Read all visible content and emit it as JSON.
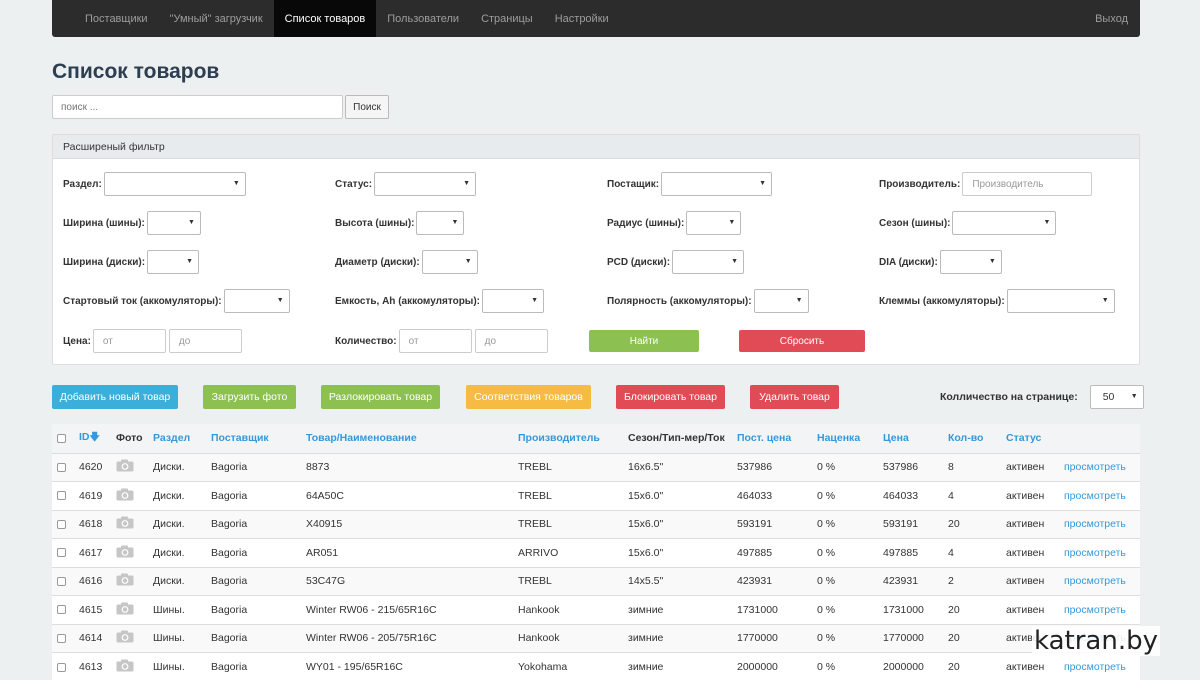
{
  "nav": {
    "items": [
      {
        "label": "Поставщики",
        "active": false
      },
      {
        "label": "\"Умный\" загрузчик",
        "active": false
      },
      {
        "label": "Список товаров",
        "active": true
      },
      {
        "label": "Пользователи",
        "active": false
      },
      {
        "label": "Страницы",
        "active": false
      },
      {
        "label": "Настройки",
        "active": false
      }
    ],
    "logout": "Выход"
  },
  "page_title": "Список товаров",
  "search": {
    "placeholder": "поиск ...",
    "button": "Поиск"
  },
  "filter": {
    "heading": "Расширеный фильтр",
    "razdel": "Раздел:",
    "status": "Статус:",
    "postavshik": "Постащик:",
    "proizvoditel": "Производитель:",
    "proizvoditel_placeholder": "Производитель",
    "shirina_shiny": "Ширина (шины):",
    "vysota_shiny": "Высота (шины):",
    "radius_shiny": "Радиус (шины):",
    "sezon_shiny": "Сезон (шины):",
    "shirina_diski": "Ширина (диски):",
    "diametr_diski": "Диаметр (диски):",
    "pcd_diski": "PCD (диски):",
    "dia_diski": "DIA (диски):",
    "start_tok": "Стартовый ток (аккомуляторы):",
    "emkost": "Емкость, Ah (аккомуляторы):",
    "polyarnost": "Полярность (аккомуляторы):",
    "klemmy": "Клеммы (аккомуляторы):",
    "cena": "Цена:",
    "kolichestvo": "Количество:",
    "from_placeholder": "от",
    "to_placeholder": "до",
    "find_button": "Найти",
    "reset_button": "Сбросить"
  },
  "actions": {
    "add": "Добавить новый товар",
    "upload_photo": "Загрузить фото",
    "unlock": "Разлокировать товар",
    "matches": "Соответствия товаров",
    "block": "Блокировать товар",
    "delete": "Удалить товар",
    "per_page_label": "Колличество на странице:",
    "per_page_value": "50"
  },
  "table": {
    "headers": {
      "id": "ID",
      "foto": "Фото",
      "razdel": "Раздел",
      "postavshik": "Поставщик",
      "tovar": "Товар/Наименование",
      "proizvoditel": "Производитель",
      "sezon": "Сезон/Тип-мер/Ток",
      "post_cena": "Пост. цена",
      "nacenka": "Наценка",
      "cena": "Цена",
      "kolvo": "Кол-во",
      "status": "Статус"
    },
    "rows": [
      {
        "id": "4620",
        "razdel": "Диски.",
        "postavshik": "Bagoria",
        "tovar": "8873",
        "proizvoditel": "TREBL",
        "sezon": "16x6.5\"",
        "post_cena": "537986",
        "nacenka": "0 %",
        "cena": "537986",
        "kolvo": "8",
        "status": "активен",
        "link": "просмотреть"
      },
      {
        "id": "4619",
        "razdel": "Диски.",
        "postavshik": "Bagoria",
        "tovar": "64A50C",
        "proizvoditel": "TREBL",
        "sezon": "15x6.0\"",
        "post_cena": "464033",
        "nacenka": "0 %",
        "cena": "464033",
        "kolvo": "4",
        "status": "активен",
        "link": "просмотреть"
      },
      {
        "id": "4618",
        "razdel": "Диски.",
        "postavshik": "Bagoria",
        "tovar": "X40915",
        "proizvoditel": "TREBL",
        "sezon": "15x6.0\"",
        "post_cena": "593191",
        "nacenka": "0 %",
        "cena": "593191",
        "kolvo": "20",
        "status": "активен",
        "link": "просмотреть"
      },
      {
        "id": "4617",
        "razdel": "Диски.",
        "postavshik": "Bagoria",
        "tovar": "AR051",
        "proizvoditel": "ARRIVO",
        "sezon": "15x6.0\"",
        "post_cena": "497885",
        "nacenka": "0 %",
        "cena": "497885",
        "kolvo": "4",
        "status": "активен",
        "link": "просмотреть"
      },
      {
        "id": "4616",
        "razdel": "Диски.",
        "postavshik": "Bagoria",
        "tovar": "53C47G",
        "proizvoditel": "TREBL",
        "sezon": "14x5.5\"",
        "post_cena": "423931",
        "nacenka": "0 %",
        "cena": "423931",
        "kolvo": "2",
        "status": "активен",
        "link": "просмотреть"
      },
      {
        "id": "4615",
        "razdel": "Шины.",
        "postavshik": "Bagoria",
        "tovar": "Winter RW06 - 215/65R16C",
        "proizvoditel": "Hankook",
        "sezon": "зимние",
        "post_cena": "1731000",
        "nacenka": "0 %",
        "cena": "1731000",
        "kolvo": "20",
        "status": "активен",
        "link": "просмотреть"
      },
      {
        "id": "4614",
        "razdel": "Шины.",
        "postavshik": "Bagoria",
        "tovar": "Winter RW06 - 205/75R16C",
        "proizvoditel": "Hankook",
        "sezon": "зимние",
        "post_cena": "1770000",
        "nacenka": "0 %",
        "cena": "1770000",
        "kolvo": "20",
        "status": "активен",
        "link": "просмотреть"
      },
      {
        "id": "4613",
        "razdel": "Шины.",
        "postavshik": "Bagoria",
        "tovar": "WY01 - 195/65R16C",
        "proizvoditel": "Yokohama",
        "sezon": "зимние",
        "post_cena": "2000000",
        "nacenka": "0 %",
        "cena": "2000000",
        "kolvo": "20",
        "status": "активен",
        "link": "просмотреть"
      }
    ]
  },
  "watermark": "katran.by",
  "colors": {
    "navbar": "#2c2c2c",
    "link": "#3498db",
    "btn_blue": "#3bafda",
    "btn_green": "#8cc152",
    "btn_orange": "#f6bb42",
    "btn_red": "#e14b55"
  },
  "icons": {
    "camera": "camera-icon",
    "sort": "sort-down-arrow-icon"
  }
}
